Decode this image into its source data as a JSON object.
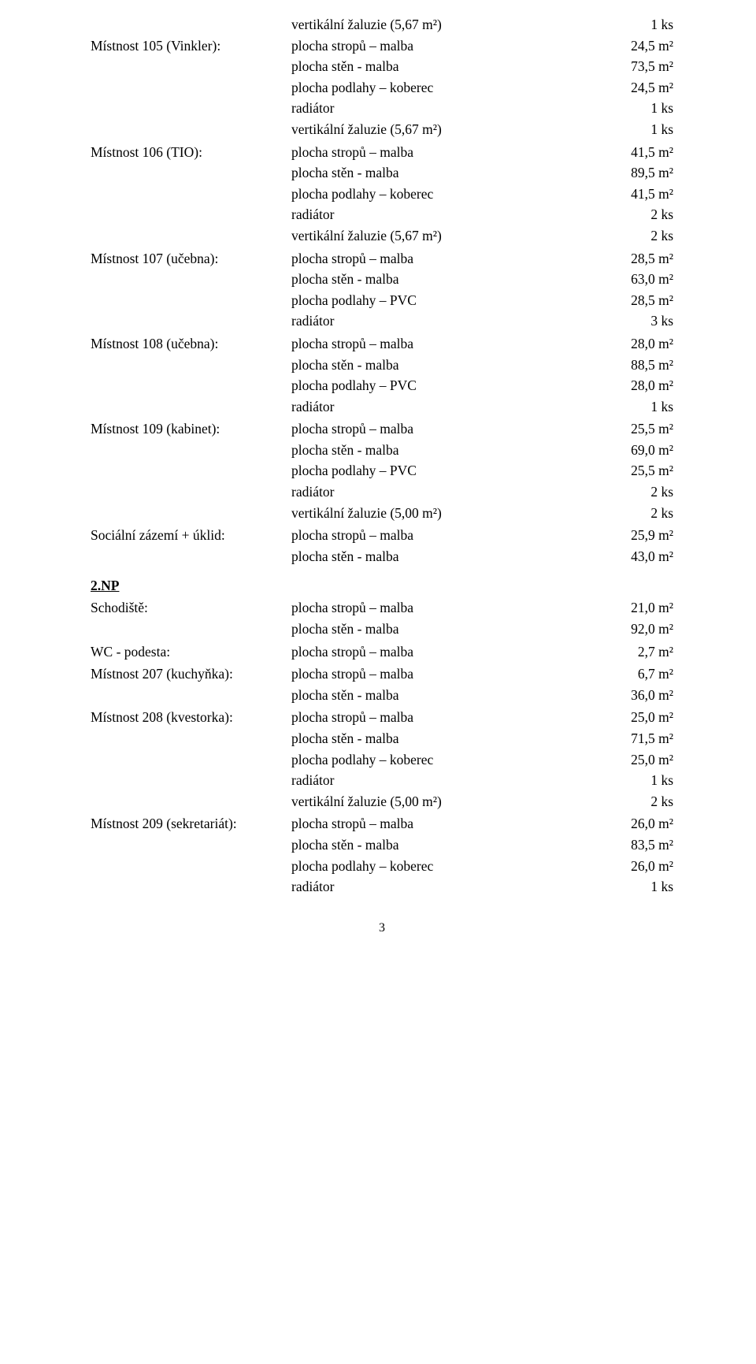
{
  "standalone": {
    "desc": "vertikální žaluzie (5,67 m²)",
    "val": "1 ks"
  },
  "groups_top": [
    {
      "label": "Místnost 105 (Vinkler):",
      "lines": [
        {
          "desc": "plocha stropů – malba",
          "val": "24,5 m²"
        },
        {
          "desc": "plocha stěn - malba",
          "val": "73,5 m²"
        },
        {
          "desc": "plocha podlahy – koberec",
          "val": "24,5 m²"
        },
        {
          "desc": "radiátor",
          "val": "1 ks"
        },
        {
          "desc": "vertikální žaluzie (5,67 m²)",
          "val": "1 ks"
        }
      ]
    },
    {
      "label": "Místnost 106 (TIO):",
      "lines": [
        {
          "desc": "plocha stropů – malba",
          "val": "41,5 m²"
        },
        {
          "desc": "plocha stěn - malba",
          "val": "89,5 m²"
        },
        {
          "desc": "plocha podlahy – koberec",
          "val": "41,5 m²"
        },
        {
          "desc": "radiátor",
          "val": "2 ks"
        },
        {
          "desc": "vertikální žaluzie (5,67 m²)",
          "val": "2 ks"
        }
      ]
    },
    {
      "label": "Místnost 107 (učebna):",
      "lines": [
        {
          "desc": "plocha stropů – malba",
          "val": "28,5 m²"
        },
        {
          "desc": "plocha stěn - malba",
          "val": "63,0 m²"
        },
        {
          "desc": "plocha podlahy – PVC",
          "val": "28,5 m²"
        },
        {
          "desc": "radiátor",
          "val": "3 ks"
        }
      ]
    },
    {
      "label": "Místnost 108 (učebna):",
      "lines": [
        {
          "desc": "plocha stropů – malba",
          "val": "28,0 m²"
        },
        {
          "desc": "plocha stěn - malba",
          "val": "88,5 m²"
        },
        {
          "desc": "plocha podlahy – PVC",
          "val": "28,0 m²"
        },
        {
          "desc": "radiátor",
          "val": "1 ks"
        }
      ]
    },
    {
      "label": "Místnost 109 (kabinet):",
      "lines": [
        {
          "desc": "plocha stropů – malba",
          "val": "25,5 m²"
        },
        {
          "desc": "plocha stěn - malba",
          "val": "69,0 m²"
        },
        {
          "desc": "plocha podlahy – PVC",
          "val": "25,5 m²"
        },
        {
          "desc": "radiátor",
          "val": "2 ks"
        },
        {
          "desc": "vertikální žaluzie (5,00 m²)",
          "val": "2 ks"
        }
      ]
    },
    {
      "label": "Sociální zázemí + úklid:",
      "lines": [
        {
          "desc": "plocha stropů – malba",
          "val": "25,9 m²"
        },
        {
          "desc": "plocha stěn - malba",
          "val": "43,0 m²"
        }
      ]
    }
  ],
  "section2_title": "2.NP",
  "groups_bottom": [
    {
      "label": "Schodiště:",
      "lines": [
        {
          "desc": "plocha stropů – malba",
          "val": "21,0 m²"
        },
        {
          "desc": "plocha stěn - malba",
          "val": "92,0 m²"
        }
      ]
    },
    {
      "label": "WC - podesta:",
      "lines": [
        {
          "desc": "plocha stropů – malba",
          "val": "2,7 m²"
        }
      ]
    },
    {
      "label": "Místnost 207 (kuchyňka):",
      "lines": [
        {
          "desc": "plocha stropů – malba",
          "val": "6,7 m²"
        },
        {
          "desc": "plocha stěn - malba",
          "val": "36,0 m²"
        }
      ]
    },
    {
      "label": "Místnost 208 (kvestorka):",
      "lines": [
        {
          "desc": "plocha stropů – malba",
          "val": "25,0 m²"
        },
        {
          "desc": "plocha stěn - malba",
          "val": "71,5 m²"
        },
        {
          "desc": "plocha podlahy – koberec",
          "val": "25,0 m²"
        },
        {
          "desc": "radiátor",
          "val": "1 ks"
        },
        {
          "desc": "vertikální žaluzie (5,00 m²)",
          "val": "2 ks"
        }
      ]
    },
    {
      "label": "Místnost 209 (sekretariát):",
      "lines": [
        {
          "desc": "plocha stropů – malba",
          "val": "26,0 m²"
        },
        {
          "desc": "plocha stěn - malba",
          "val": "83,5 m²"
        },
        {
          "desc": "plocha podlahy – koberec",
          "val": "26,0 m²"
        },
        {
          "desc": "radiátor",
          "val": "1 ks"
        }
      ]
    }
  ],
  "page_number": "3"
}
